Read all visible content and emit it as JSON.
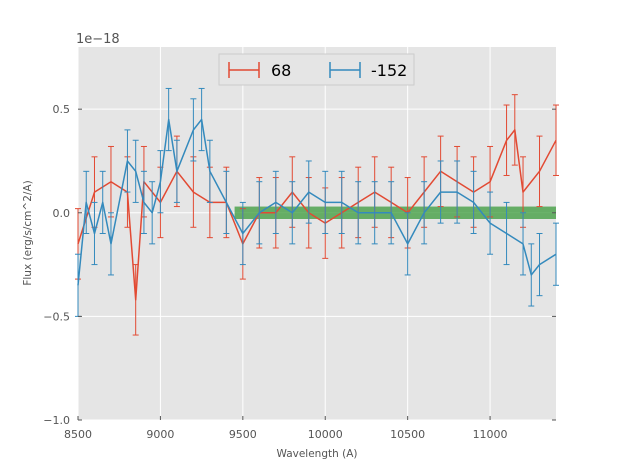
{
  "chart_data": {
    "type": "line",
    "title": "",
    "xlabel": "Wavelength (A)",
    "ylabel": "Flux (erg/s/cm^2/A)",
    "offset_label": "1e−18",
    "xlim": [
      8500,
      11400
    ],
    "ylim": [
      -1.0,
      0.8
    ],
    "y_scale": 1e-18,
    "xticks": [
      8500,
      9000,
      9500,
      10000,
      10500,
      11000
    ],
    "xtick_labels": [
      "8500",
      "9000",
      "9500",
      "10000",
      "10500",
      "11000"
    ],
    "yticks": [
      -1.0,
      -0.5,
      0.0,
      0.5
    ],
    "ytick_labels": [
      "−1.0",
      "−0.5",
      "0.0",
      "0.5"
    ],
    "grid": true,
    "legend_position": "top-center",
    "band": {
      "x0": 9450,
      "x1": 11400,
      "y0": -0.03,
      "y1": 0.03,
      "color": "#3a9a3a"
    },
    "series": [
      {
        "name": "68",
        "color": "#e24a33",
        "x": [
          8500,
          8600,
          8700,
          8800,
          8850,
          8900,
          9000,
          9100,
          9200,
          9300,
          9400,
          9500,
          9600,
          9700,
          9800,
          9900,
          10000,
          10100,
          10200,
          10300,
          10400,
          10500,
          10600,
          10700,
          10800,
          10900,
          11000,
          11100,
          11150,
          11200,
          11300,
          11400
        ],
        "y": [
          -0.15,
          0.1,
          0.15,
          0.1,
          -0.42,
          0.15,
          0.05,
          0.2,
          0.1,
          0.05,
          0.05,
          -0.15,
          0.0,
          0.0,
          0.1,
          0.0,
          -0.05,
          0.0,
          0.05,
          0.1,
          0.05,
          0.0,
          0.1,
          0.2,
          0.15,
          0.1,
          0.15,
          0.35,
          0.4,
          0.1,
          0.2,
          0.35
        ],
        "err": 0.17
      },
      {
        "name": "-152",
        "color": "#348abd",
        "x": [
          8500,
          8550,
          8600,
          8650,
          8700,
          8800,
          8850,
          8900,
          8950,
          9000,
          9050,
          9100,
          9200,
          9250,
          9300,
          9400,
          9500,
          9600,
          9700,
          9800,
          9900,
          10000,
          10100,
          10200,
          10300,
          10400,
          10500,
          10600,
          10700,
          10800,
          10900,
          11000,
          11100,
          11200,
          11250,
          11300,
          11400
        ],
        "y": [
          -0.35,
          0.05,
          -0.1,
          0.05,
          -0.15,
          0.25,
          0.2,
          0.05,
          0.0,
          0.15,
          0.45,
          0.2,
          0.4,
          0.45,
          0.2,
          0.05,
          -0.1,
          0.0,
          0.05,
          0.0,
          0.1,
          0.05,
          0.05,
          0.0,
          0.0,
          0.0,
          -0.15,
          0.0,
          0.1,
          0.1,
          0.05,
          -0.05,
          -0.1,
          -0.15,
          -0.3,
          -0.25,
          -0.2
        ],
        "err": 0.15
      }
    ]
  }
}
